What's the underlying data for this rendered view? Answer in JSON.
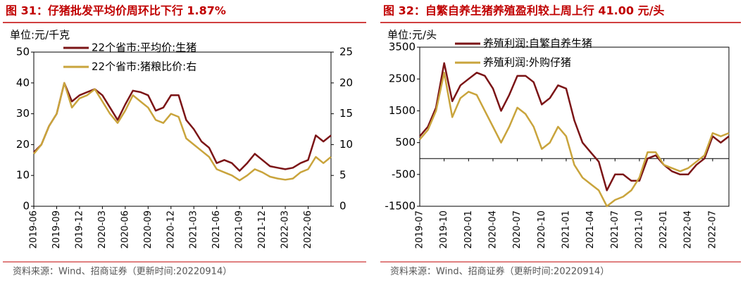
{
  "chart_data": [
    {
      "type": "line",
      "title": "图 31：仔猪批发平均价周环比下行 1.87%",
      "unit_label": "单位:元/千克",
      "source": "资料来源：Wind、招商证券（更新时间:20220914）",
      "categories": [
        "2019-06",
        null,
        null,
        "2019-09",
        null,
        null,
        "2019-12",
        null,
        null,
        "2020-03",
        null,
        null,
        "2020-06",
        null,
        null,
        "2020-09",
        null,
        null,
        "2020-12",
        null,
        null,
        "2021-03",
        null,
        null,
        "2021-06",
        null,
        null,
        "2021-09",
        null,
        null,
        "2021-12",
        null,
        null,
        "2022-03",
        null,
        null,
        "2022-06",
        null,
        null,
        null
      ],
      "series": [
        {
          "name": "22个省市:平均价:生猪",
          "color": "#7b1416",
          "axis": "y",
          "values": [
            17.5,
            20,
            26,
            30,
            40,
            34,
            36,
            37,
            38,
            36,
            32,
            28,
            33,
            37.5,
            37,
            36,
            31,
            32,
            36,
            36,
            28,
            25,
            21,
            19,
            14,
            15,
            14,
            11.5,
            14,
            17,
            15,
            13,
            12.5,
            12,
            12.5,
            14,
            15,
            23,
            21,
            23
          ]
        },
        {
          "name": "22个省市:猪粮比价:右",
          "color": "#c9a43c",
          "axis": "y2",
          "values": [
            8.5,
            10,
            13,
            15,
            20,
            16,
            17.5,
            18,
            19,
            17,
            15,
            13.5,
            15.5,
            18,
            17,
            16,
            14,
            13.5,
            15,
            14.5,
            11,
            10,
            9,
            8,
            6,
            5.5,
            5,
            4.2,
            5,
            6,
            5.5,
            4.8,
            4.5,
            4.3,
            4.5,
            5.5,
            6,
            8,
            7,
            8
          ]
        }
      ],
      "ylim": [
        0,
        50
      ],
      "yticks": [
        0,
        10,
        20,
        30,
        40,
        50
      ],
      "y2lim": [
        0,
        25
      ],
      "y2ticks": [
        0,
        5,
        10,
        15,
        20,
        25
      ]
    },
    {
      "type": "line",
      "title": "图 32：自繁自养生猪养殖盈利较上周上行 41.00 元/头",
      "unit_label": "单位:元/头",
      "source": "资料来源：Wind、招商证券（更新时间:20220914）",
      "categories": [
        "2019-07",
        null,
        null,
        "2019-10",
        null,
        null,
        "2020-01",
        null,
        null,
        "2020-04",
        null,
        null,
        "2020-07",
        null,
        null,
        "2020-10",
        null,
        null,
        "2021-01",
        null,
        null,
        "2021-04",
        null,
        null,
        "2021-07",
        null,
        null,
        "2021-10",
        null,
        null,
        "2022-01",
        null,
        null,
        "2022-04",
        null,
        null,
        "2022-07",
        null,
        null
      ],
      "series": [
        {
          "name": "养殖利润:自繁自养生猪",
          "color": "#7b1416",
          "axis": "y",
          "values": [
            700,
            1000,
            1600,
            3000,
            1800,
            2300,
            2500,
            2700,
            2600,
            2200,
            1500,
            2000,
            2600,
            2600,
            2400,
            1700,
            1900,
            2300,
            2200,
            1200,
            500,
            200,
            -100,
            -1000,
            -500,
            -500,
            -700,
            -700,
            0,
            100,
            -200,
            -400,
            -500,
            -500,
            -200,
            0,
            700,
            500,
            700
          ]
        },
        {
          "name": "养殖利润:外购仔猪",
          "color": "#c9a43c",
          "axis": "y",
          "values": [
            600,
            900,
            1500,
            2700,
            1300,
            1900,
            2100,
            2000,
            1500,
            1000,
            500,
            1000,
            1600,
            1400,
            1000,
            300,
            500,
            1000,
            700,
            -200,
            -600,
            -800,
            -1000,
            -1500,
            -1300,
            -1200,
            -1000,
            -600,
            200,
            200,
            -200,
            -300,
            -400,
            -300,
            -100,
            100,
            800,
            700,
            800
          ]
        }
      ],
      "ylim": [
        -1500,
        3500
      ],
      "yticks": [
        -1500,
        -500,
        500,
        1500,
        2500,
        3500
      ]
    }
  ]
}
